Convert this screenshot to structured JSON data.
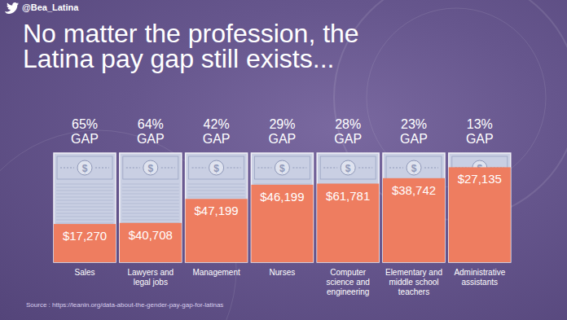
{
  "chart_data": {
    "type": "bar",
    "handle": "@Bea_Latina",
    "title": "No matter the profession, the Latina pay gap still exists...",
    "source": "Source : https://leanin.org/data-about-the-gender-pay-gap-for-latinas",
    "categories": [
      "Sales",
      "Lawyers and legal jobs",
      "Management",
      "Nurses",
      "Computer science and engineering",
      "Elementary and middle school teachers",
      "Administrative assistants"
    ],
    "values": [
      65,
      64,
      42,
      29,
      28,
      23,
      13
    ],
    "value_labels": [
      "65% GAP",
      "64% GAP",
      "42% GAP",
      "29% GAP",
      "28% GAP",
      "23% GAP",
      "13% GAP"
    ],
    "earnings_labels": [
      "$17,270",
      "$40,708",
      "$47,199",
      "$46,199",
      "$61,781",
      "$38,742",
      "$27,135"
    ],
    "ylim": [
      0,
      100
    ],
    "color": "#ee7d60",
    "data_labels": true,
    "tick_labels": false,
    "grid": false
  }
}
